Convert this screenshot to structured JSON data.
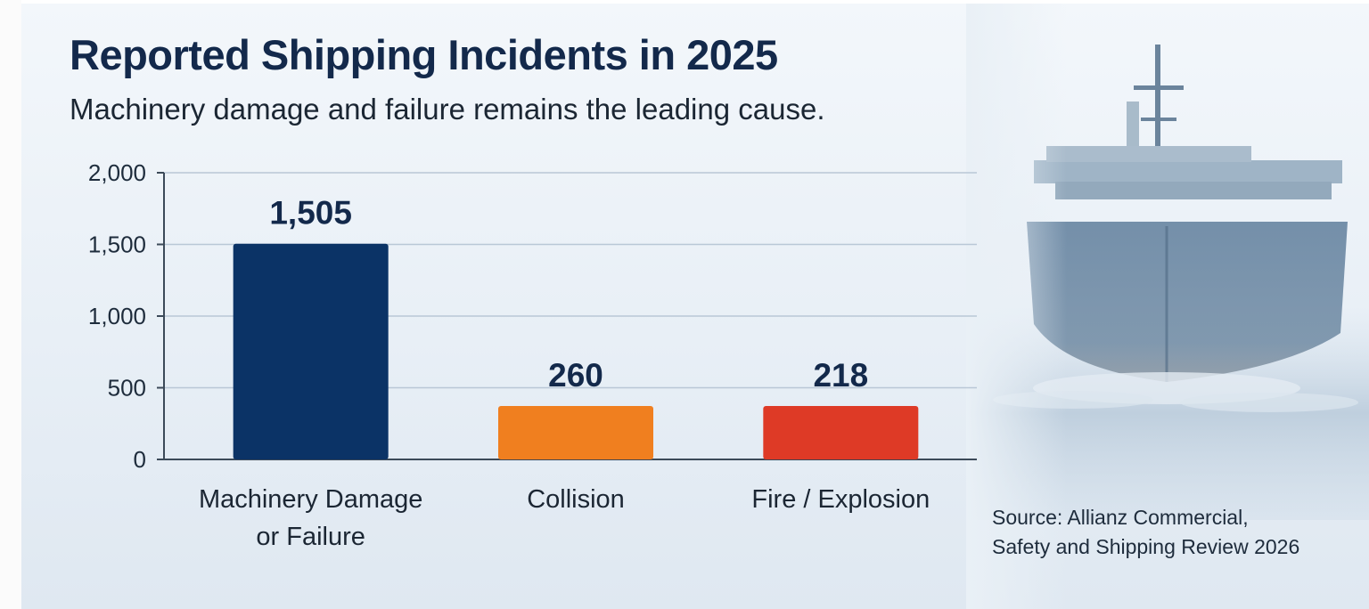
{
  "title": "Reported Shipping Incidents in 2025",
  "subtitle": "Machinery damage and failure remains the leading cause.",
  "source": "Source: Allianz Commercial,\nSafety and Shipping Review 2026",
  "colors": {
    "machinery": "#0b3366",
    "collision": "#f07f1f",
    "fire": "#de3a26",
    "title": "#13294b",
    "grid": "#b9c7d6"
  },
  "background_image": "cargo-ship-at-sea",
  "chart_data": {
    "type": "bar",
    "title": "Reported Shipping Incidents in 2025",
    "subtitle": "Machinery damage and failure remains the leading cause.",
    "categories": [
      [
        "Machinery Damage",
        "or Failure"
      ],
      [
        "Collision"
      ],
      [
        "Fire / Explosion"
      ]
    ],
    "values": [
      1505,
      260,
      218
    ],
    "value_labels": [
      "1,505",
      "260",
      "218"
    ],
    "bar_colors": [
      "#0b3366",
      "#f07f1f",
      "#de3a26"
    ],
    "ylim": [
      0,
      2000
    ],
    "yticks": [
      0,
      500,
      1000,
      1500,
      2000
    ],
    "ytick_labels": [
      "0",
      "500",
      "1,000",
      "1,500",
      "2,000"
    ],
    "grid": true,
    "legend": "none",
    "xlabel": "",
    "ylabel": ""
  }
}
